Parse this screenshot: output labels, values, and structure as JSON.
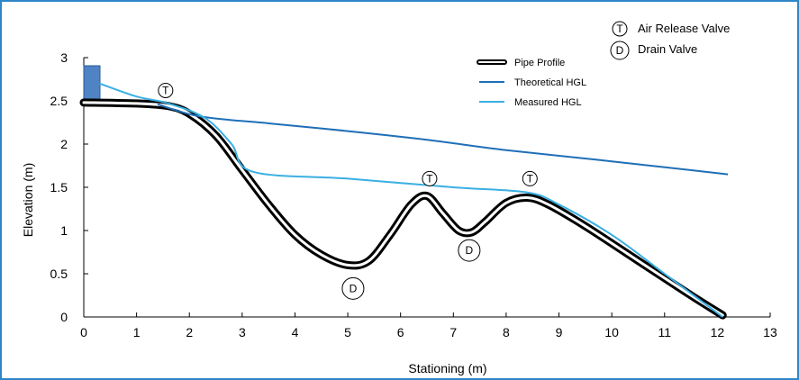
{
  "chart_data": {
    "type": "line",
    "xlabel": "Stationing (m)",
    "ylabel": "Elevation (m)",
    "xlim": [
      0,
      13
    ],
    "ylim": [
      0,
      3
    ],
    "xticks": [
      "0",
      "1",
      "2",
      "3",
      "4",
      "5",
      "6",
      "7",
      "8",
      "9",
      "10",
      "11",
      "12",
      "13"
    ],
    "yticks": [
      "0",
      "0.5",
      "1",
      "1.5",
      "2",
      "2.5",
      "3"
    ],
    "legend_position": "top-right",
    "series": [
      {
        "name": "Pipe Profile",
        "color": "#000000",
        "x": [
          0,
          1,
          1.6,
          2,
          2.5,
          3,
          3.5,
          4,
          4.5,
          5,
          5.4,
          5.8,
          6.2,
          6.5,
          6.8,
          7.1,
          7.35,
          7.6,
          8,
          8.4,
          8.8,
          9.5,
          10.5,
          11.5,
          12.1
        ],
        "y": [
          2.48,
          2.47,
          2.44,
          2.35,
          2.1,
          1.7,
          1.3,
          0.95,
          0.72,
          0.6,
          0.65,
          0.95,
          1.3,
          1.4,
          1.2,
          1.0,
          0.98,
          1.1,
          1.32,
          1.38,
          1.3,
          1.05,
          0.65,
          0.25,
          0.02
        ]
      },
      {
        "name": "Theoretical HGL",
        "color": "#1f6fb7",
        "x": [
          1.4,
          2.2,
          3.5,
          5,
          6.5,
          8,
          10,
          12.2
        ],
        "y": [
          2.46,
          2.32,
          2.24,
          2.15,
          2.05,
          1.93,
          1.8,
          1.65
        ]
      },
      {
        "name": "Measured HGL",
        "color": "#3aafe3",
        "x": [
          0.3,
          1,
          1.6,
          2.3,
          2.8,
          3.2,
          5,
          7,
          8.4,
          9,
          10,
          11,
          12.1
        ],
        "y": [
          2.7,
          2.55,
          2.47,
          2.3,
          2.0,
          1.68,
          1.6,
          1.5,
          1.44,
          1.3,
          0.95,
          0.5,
          0.0
        ]
      }
    ],
    "annotations": [
      {
        "symbol": "T",
        "x": 1.55,
        "y": 2.62
      },
      {
        "symbol": "T",
        "x": 6.55,
        "y": 1.6
      },
      {
        "symbol": "T",
        "x": 8.45,
        "y": 1.6
      },
      {
        "symbol": "D",
        "x": 5.1,
        "y": 0.33
      },
      {
        "symbol": "D",
        "x": 7.3,
        "y": 0.77
      }
    ],
    "symbol_key": [
      {
        "symbol": "T",
        "label": "Air Release Valve"
      },
      {
        "symbol": "D",
        "label": "Drain Valve"
      }
    ],
    "colors": {
      "border": "#2e86c8",
      "tank": "#4f83c4"
    }
  }
}
